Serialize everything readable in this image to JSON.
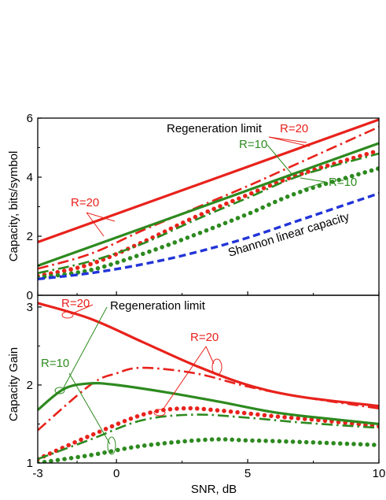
{
  "chart_data": [
    {
      "type": "line",
      "ylabel": "Capacity, bits/symbol",
      "xlim": [
        -3,
        10
      ],
      "ylim": [
        0,
        6
      ],
      "xticks": [
        -3,
        0,
        5,
        10
      ],
      "yticks": [
        0,
        2,
        4,
        6
      ],
      "grid": false,
      "annotations": [
        "Regeneration limit",
        "R=20",
        "R=10",
        "R=20",
        "R=10",
        "Shannon linear capacity"
      ],
      "series": [
        {
          "color": "#e8221c",
          "style": "solid",
          "x": [
            -3,
            10
          ],
          "y": [
            1.8,
            5.95
          ]
        },
        {
          "color": "#e8221c",
          "style": "dashdot",
          "x": [
            -3,
            -1,
            1,
            3,
            5,
            7,
            10
          ],
          "y": [
            0.9,
            1.4,
            2.2,
            2.95,
            3.7,
            4.5,
            5.7
          ]
        },
        {
          "color": "#e8221c",
          "style": "dotted",
          "x": [
            -3,
            -1,
            1,
            3,
            5,
            7,
            10
          ],
          "y": [
            0.65,
            1.05,
            1.8,
            2.65,
            3.4,
            4.1,
            4.9
          ]
        },
        {
          "color": "#2d8a1f",
          "style": "solid",
          "x": [
            -3,
            10
          ],
          "y": [
            1.0,
            5.15
          ]
        },
        {
          "color": "#2d8a1f",
          "style": "dashdot",
          "x": [
            -3,
            -1,
            1,
            3,
            5,
            7,
            10
          ],
          "y": [
            0.75,
            1.15,
            1.75,
            2.55,
            3.3,
            4.05,
            4.8
          ]
        },
        {
          "color": "#2d8a1f",
          "style": "dotted",
          "x": [
            -3,
            -1,
            1,
            3,
            5,
            7,
            10
          ],
          "y": [
            0.6,
            0.85,
            1.4,
            2.05,
            2.75,
            3.5,
            4.3
          ]
        },
        {
          "color": "#2234d8",
          "style": "dashed",
          "x": [
            -3,
            -1,
            1,
            3,
            5,
            7,
            10
          ],
          "y": [
            0.55,
            0.75,
            1.05,
            1.45,
            1.95,
            2.55,
            3.45
          ]
        }
      ]
    },
    {
      "type": "line",
      "xlabel": "SNR, dB",
      "ylabel": "Capacity Gain",
      "xlim": [
        -3,
        10
      ],
      "ylim": [
        1,
        3.15
      ],
      "xticks": [
        -3,
        0,
        5,
        10
      ],
      "yticks": [
        1,
        2,
        3
      ],
      "grid": false,
      "annotations": [
        "R=20",
        "Regeneration limit",
        "R=20",
        "R=10"
      ],
      "series": [
        {
          "color": "#e8221c",
          "style": "solid",
          "x": [
            -3,
            -1,
            1,
            3,
            5,
            7,
            10
          ],
          "y": [
            3.05,
            2.85,
            2.55,
            2.25,
            2.0,
            1.85,
            1.73
          ]
        },
        {
          "color": "#e8221c",
          "style": "dashdot",
          "x": [
            -3,
            -1,
            0,
            1,
            3,
            5,
            7,
            10
          ],
          "y": [
            1.42,
            2.0,
            2.15,
            2.22,
            2.15,
            1.98,
            1.85,
            1.7
          ]
        },
        {
          "color": "#e8221c",
          "style": "dotted",
          "x": [
            -3,
            -1,
            1,
            2.5,
            4,
            6,
            8,
            10
          ],
          "y": [
            1.05,
            1.35,
            1.62,
            1.7,
            1.67,
            1.6,
            1.54,
            1.47
          ]
        },
        {
          "color": "#2d8a1f",
          "style": "solid",
          "x": [
            -3,
            -2,
            -1,
            0,
            2,
            4,
            6,
            8,
            10
          ],
          "y": [
            1.68,
            1.95,
            2.02,
            2.0,
            1.9,
            1.78,
            1.65,
            1.57,
            1.5
          ]
        },
        {
          "color": "#2d8a1f",
          "style": "dashdot",
          "x": [
            -3,
            -1,
            1,
            3,
            5,
            7,
            10
          ],
          "y": [
            1.05,
            1.3,
            1.55,
            1.62,
            1.58,
            1.52,
            1.45
          ]
        },
        {
          "color": "#2d8a1f",
          "style": "dotted",
          "x": [
            -3,
            -1,
            1,
            3.5,
            5,
            7,
            10
          ],
          "y": [
            1.0,
            1.1,
            1.22,
            1.3,
            1.29,
            1.27,
            1.23
          ]
        }
      ]
    }
  ]
}
